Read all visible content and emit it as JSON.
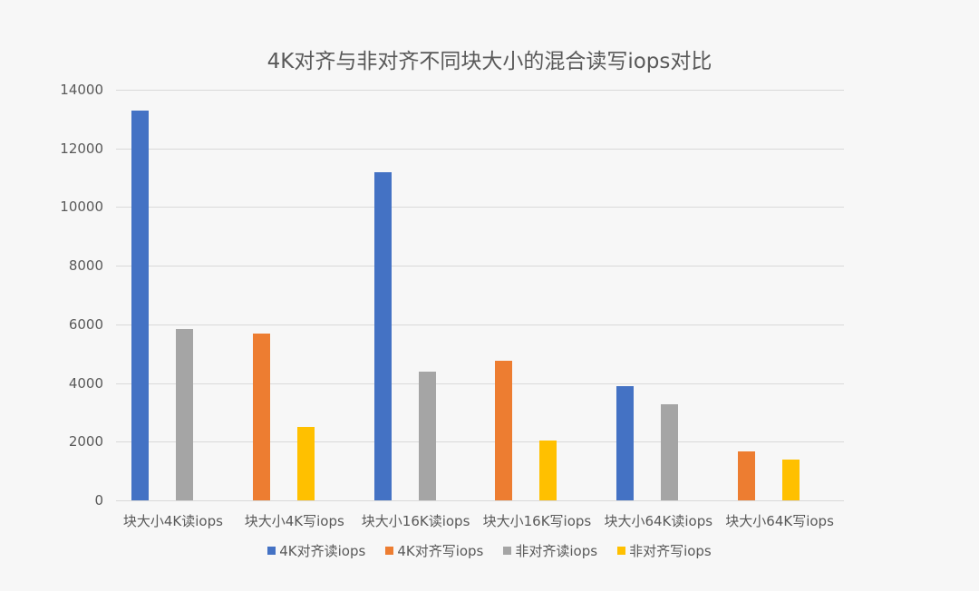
{
  "chart_data": {
    "type": "bar",
    "title": "4K对齐与非对齐不同块大小的混合读写iops对比",
    "xlabel": "",
    "ylabel": "",
    "ylim": [
      0,
      14000
    ],
    "yticks": [
      0,
      2000,
      4000,
      6000,
      8000,
      10000,
      12000,
      14000
    ],
    "grid": true,
    "legend_position": "bottom",
    "categories": [
      "块大小4K读iops",
      "块大小4K写iops",
      "块大小16K读iops",
      "块大小16K写iops",
      "块大小64K读iops",
      "块大小64K写iops"
    ],
    "series": [
      {
        "name": "4K对齐读iops",
        "color": "#4472c4",
        "values": [
          13290,
          null,
          11190,
          null,
          3890,
          null
        ]
      },
      {
        "name": "4K对齐写iops",
        "color": "#ed7d31",
        "values": [
          null,
          5690,
          null,
          4760,
          null,
          1670
        ]
      },
      {
        "name": "非对齐读iops",
        "color": "#a5a5a5",
        "values": [
          5840,
          null,
          4390,
          null,
          3280,
          null
        ]
      },
      {
        "name": "非对齐写iops",
        "color": "#ffc000",
        "values": [
          null,
          2500,
          null,
          2040,
          null,
          1390
        ]
      }
    ]
  }
}
